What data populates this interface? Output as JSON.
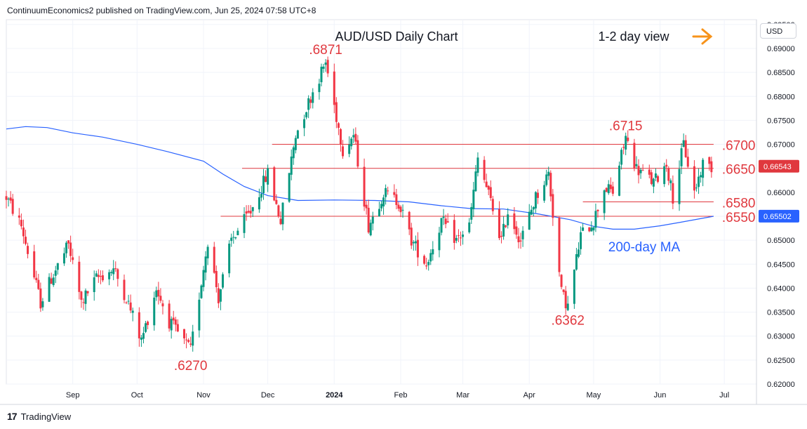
{
  "header": {
    "published": "ContinuumEconomics2 published on TradingView.com, Jun 25, 2024 07:58 UTC+8"
  },
  "branding": {
    "logo_text": "TradingView",
    "logo_mark": "17"
  },
  "currency": "USD",
  "annotations": {
    "title": "AUD/USD Daily Chart",
    "view": "1-2 day view",
    "ma_label": "200-day MA",
    "arrow_color": "#f7931a",
    "level_color": "#e0383e",
    "ma_color": "#2962ff",
    "peaks": [
      {
        "label": ".6871",
        "value": 0.6871,
        "date": "2023-12-28"
      },
      {
        "label": ".6715",
        "value": 0.6715,
        "date": "2024-05-16"
      },
      {
        "label": ".6362",
        "value": 0.6362,
        "date": "2024-04-19"
      },
      {
        "label": ".6270",
        "value": 0.627,
        "date": "2023-10-26"
      }
    ]
  },
  "price_tags": [
    {
      "label": "0.66543",
      "value": 0.66543,
      "color": "#e0383e"
    },
    {
      "label": "0.65502",
      "value": 0.65502,
      "color": "#2962ff"
    }
  ],
  "chart_data": {
    "type": "line",
    "title": "AUD/USD Daily Chart",
    "ylim": [
      0.62,
      0.696
    ],
    "xlim": [
      "2023-08-01",
      "2024-07-16"
    ],
    "x_ticks": [
      {
        "label": "Sep",
        "date": "2023-09-01"
      },
      {
        "label": "Oct",
        "date": "2023-10-01"
      },
      {
        "label": "Nov",
        "date": "2023-11-01"
      },
      {
        "label": "Dec",
        "date": "2023-12-01"
      },
      {
        "label": "2024",
        "date": "2024-01-01",
        "bold": true
      },
      {
        "label": "Feb",
        "date": "2024-02-01"
      },
      {
        "label": "Mar",
        "date": "2024-03-01"
      },
      {
        "label": "Apr",
        "date": "2024-04-01"
      },
      {
        "label": "May",
        "date": "2024-05-01"
      },
      {
        "label": "Jun",
        "date": "2024-06-01"
      },
      {
        "label": "Jul",
        "date": "2024-07-01"
      }
    ],
    "y_ticks": [
      {
        "label": "0.62000",
        "value": 0.62
      },
      {
        "label": "0.62500",
        "value": 0.625
      },
      {
        "label": "0.63000",
        "value": 0.63
      },
      {
        "label": "0.63500",
        "value": 0.635
      },
      {
        "label": "0.64000",
        "value": 0.64
      },
      {
        "label": "0.64500",
        "value": 0.645
      },
      {
        "label": "0.65000",
        "value": 0.65
      },
      {
        "label": "0.65500",
        "value": 0.655
      },
      {
        "label": "0.66000",
        "value": 0.66
      },
      {
        "label": "0.66500",
        "value": 0.665
      },
      {
        "label": "0.67000",
        "value": 0.67
      },
      {
        "label": "0.67500",
        "value": 0.675
      },
      {
        "label": "0.68000",
        "value": 0.68
      },
      {
        "label": "0.68500",
        "value": 0.685
      },
      {
        "label": "0.69000",
        "value": 0.69
      },
      {
        "label": "0.69500",
        "value": 0.695
      }
    ],
    "levels": [
      {
        "label": ".6700",
        "value": 0.67,
        "from": "2023-12-03",
        "to": "2024-06-26"
      },
      {
        "label": ".6650",
        "value": 0.665,
        "from": "2023-11-19",
        "to": "2024-06-26"
      },
      {
        "label": ".6580",
        "value": 0.658,
        "from": "2024-04-26",
        "to": "2024-06-26"
      },
      {
        "label": ".6550",
        "value": 0.655,
        "from": "2023-11-09",
        "to": "2024-06-26"
      }
    ],
    "ma200": {
      "name": "200-day MA",
      "points": [
        [
          "2023-08-01",
          0.6732
        ],
        [
          "2023-08-10",
          0.6737
        ],
        [
          "2023-08-20",
          0.6735
        ],
        [
          "2023-09-01",
          0.6724
        ],
        [
          "2023-09-15",
          0.6715
        ],
        [
          "2023-10-01",
          0.67
        ],
        [
          "2023-10-15",
          0.6685
        ],
        [
          "2023-11-01",
          0.6665
        ],
        [
          "2023-11-10",
          0.6638
        ],
        [
          "2023-11-20",
          0.6612
        ],
        [
          "2023-12-01",
          0.6593
        ],
        [
          "2023-12-15",
          0.6583
        ],
        [
          "2024-01-01",
          0.6584
        ],
        [
          "2024-01-20",
          0.6583
        ],
        [
          "2024-02-05",
          0.658
        ],
        [
          "2024-02-20",
          0.6572
        ],
        [
          "2024-03-05",
          0.6566
        ],
        [
          "2024-03-20",
          0.6565
        ],
        [
          "2024-04-05",
          0.6555
        ],
        [
          "2024-04-20",
          0.6543
        ],
        [
          "2024-05-01",
          0.6529
        ],
        [
          "2024-05-10",
          0.6523
        ],
        [
          "2024-05-20",
          0.6523
        ],
        [
          "2024-06-01",
          0.653
        ],
        [
          "2024-06-10",
          0.6537
        ],
        [
          "2024-06-26",
          0.655
        ]
      ]
    },
    "price_path": [
      [
        "2023-08-01",
        0.659
      ],
      [
        "2023-08-08",
        0.653
      ],
      [
        "2023-08-17",
        0.637
      ],
      [
        "2023-08-22",
        0.642
      ],
      [
        "2023-08-30",
        0.649
      ],
      [
        "2023-09-05",
        0.637
      ],
      [
        "2023-09-12",
        0.642
      ],
      [
        "2023-09-20",
        0.644
      ],
      [
        "2023-09-26",
        0.638
      ],
      [
        "2023-10-03",
        0.629
      ],
      [
        "2023-10-10",
        0.64
      ],
      [
        "2023-10-16",
        0.633
      ],
      [
        "2023-10-26",
        0.627
      ],
      [
        "2023-11-03",
        0.65
      ],
      [
        "2023-11-08",
        0.638
      ],
      [
        "2023-11-14",
        0.65
      ],
      [
        "2023-11-23",
        0.656
      ],
      [
        "2023-12-01",
        0.664
      ],
      [
        "2023-12-07",
        0.654
      ],
      [
        "2023-12-14",
        0.672
      ],
      [
        "2023-12-22",
        0.681
      ],
      [
        "2023-12-28",
        0.6871
      ],
      [
        "2024-01-05",
        0.669
      ],
      [
        "2024-01-10",
        0.672
      ],
      [
        "2024-01-17",
        0.653
      ],
      [
        "2024-01-24",
        0.66
      ],
      [
        "2024-01-31",
        0.658
      ],
      [
        "2024-02-06",
        0.65
      ],
      [
        "2024-02-13",
        0.645
      ],
      [
        "2024-02-20",
        0.654
      ],
      [
        "2024-02-27",
        0.65
      ],
      [
        "2024-03-04",
        0.653
      ],
      [
        "2024-03-08",
        0.667
      ],
      [
        "2024-03-14",
        0.658
      ],
      [
        "2024-03-19",
        0.65
      ],
      [
        "2024-03-22",
        0.656
      ],
      [
        "2024-03-28",
        0.65
      ],
      [
        "2024-04-04",
        0.659
      ],
      [
        "2024-04-10",
        0.664
      ],
      [
        "2024-04-16",
        0.639
      ],
      [
        "2024-04-19",
        0.6362
      ],
      [
        "2024-04-25",
        0.651
      ],
      [
        "2024-05-01",
        0.654
      ],
      [
        "2024-05-06",
        0.661
      ],
      [
        "2024-05-10",
        0.66
      ],
      [
        "2024-05-16",
        0.6715
      ],
      [
        "2024-05-21",
        0.665
      ],
      [
        "2024-05-29",
        0.662
      ],
      [
        "2024-06-04",
        0.666
      ],
      [
        "2024-06-07",
        0.659
      ],
      [
        "2024-06-12",
        0.67
      ],
      [
        "2024-06-17",
        0.66
      ],
      [
        "2024-06-21",
        0.666
      ],
      [
        "2024-06-25",
        0.6654
      ]
    ],
    "candle_colors": {
      "up": "#089981",
      "down": "#f23645"
    }
  }
}
